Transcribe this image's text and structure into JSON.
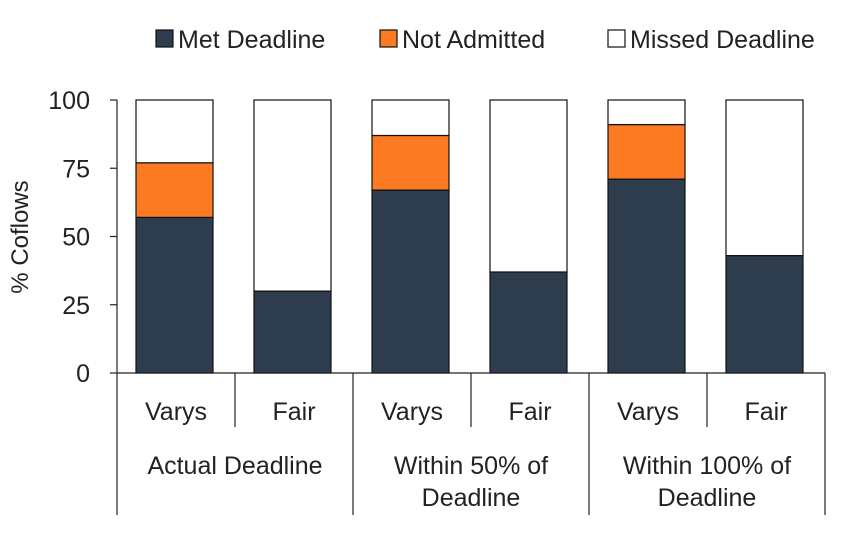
{
  "chart_data": {
    "type": "bar",
    "stacked": true,
    "ylabel": "% Coflows",
    "ylim": [
      0,
      100
    ],
    "yticks": [
      "0",
      "25",
      "50",
      "75",
      "100"
    ],
    "categories": [
      "Varys",
      "Fair",
      "Varys",
      "Fair",
      "Varys",
      "Fair"
    ],
    "groups": [
      {
        "label_lines": [
          "Actual Deadline"
        ],
        "span": [
          0,
          1
        ]
      },
      {
        "label_lines": [
          "Within 50% of",
          "Deadline"
        ],
        "span": [
          2,
          3
        ]
      },
      {
        "label_lines": [
          "Within 100% of",
          "Deadline"
        ],
        "span": [
          4,
          5
        ]
      }
    ],
    "series": [
      {
        "name": "Met Deadline",
        "color": "#2e3d4e",
        "values": [
          57,
          30,
          67,
          37,
          71,
          43
        ]
      },
      {
        "name": "Not Admitted",
        "color": "#fb7a22",
        "values": [
          20,
          0,
          20,
          0,
          20,
          0
        ]
      },
      {
        "name": "Missed Deadline",
        "color": "#ffffff",
        "values": [
          23,
          70,
          13,
          63,
          9,
          57
        ]
      }
    ],
    "legend_position": "top-right",
    "grid": false
  }
}
